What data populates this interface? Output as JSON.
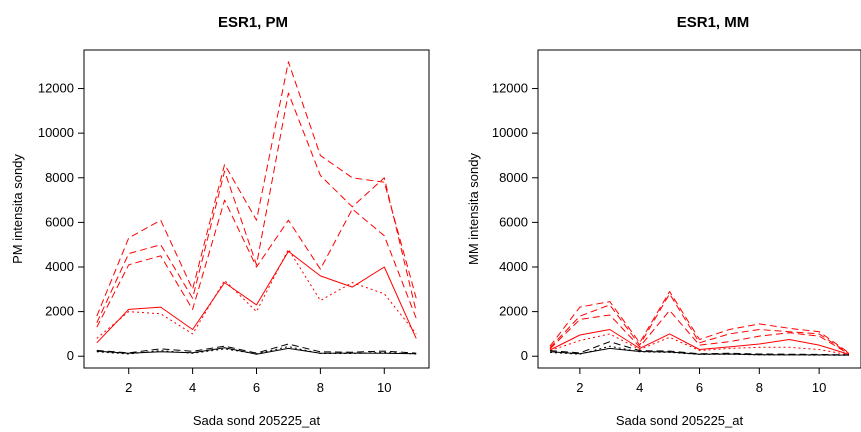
{
  "chart_data": [
    {
      "type": "line",
      "title": "ESR1, PM",
      "xlabel": "Sada sond 205225_at",
      "ylabel": "PM intensita sondy",
      "xlim": [
        1,
        11
      ],
      "ylim": [
        0,
        13200
      ],
      "xticks": [
        2,
        4,
        6,
        8,
        10
      ],
      "yticks": [
        0,
        2000,
        4000,
        6000,
        8000,
        10000,
        12000
      ],
      "x": [
        1,
        2,
        3,
        4,
        5,
        6,
        7,
        8,
        9,
        10,
        11
      ],
      "series": [
        {
          "color": "#ff0000",
          "dash": "dashed",
          "values": [
            1800,
            5300,
            6100,
            3000,
            8600,
            6100,
            13200,
            9000,
            8000,
            7800,
            2600
          ]
        },
        {
          "color": "#ff0000",
          "dash": "dashed",
          "values": [
            1500,
            4600,
            5000,
            2600,
            8300,
            4100,
            11800,
            8100,
            6700,
            8000,
            2000
          ]
        },
        {
          "color": "#ff0000",
          "dash": "dashed",
          "values": [
            1300,
            4100,
            4500,
            2100,
            7000,
            4000,
            6100,
            3900,
            6600,
            5400,
            1700
          ]
        },
        {
          "color": "#ff0000",
          "dash": "dotted",
          "values": [
            800,
            2000,
            1900,
            1000,
            3400,
            2000,
            4800,
            2500,
            3300,
            2800,
            1000
          ]
        },
        {
          "color": "#ff0000",
          "dash": "solid",
          "values": [
            600,
            2100,
            2200,
            1200,
            3300,
            2300,
            4700,
            3600,
            3100,
            4000,
            800
          ]
        },
        {
          "color": "#000000",
          "dash": "solid",
          "values": [
            230,
            130,
            200,
            160,
            380,
            90,
            350,
            130,
            140,
            130,
            110
          ]
        },
        {
          "color": "#000000",
          "dash": "dashed",
          "values": [
            260,
            150,
            330,
            220,
            450,
            140,
            550,
            200,
            180,
            230,
            140
          ]
        },
        {
          "color": "#000000",
          "dash": "dotted",
          "values": [
            200,
            100,
            250,
            130,
            330,
            110,
            430,
            120,
            120,
            170,
            100
          ]
        }
      ]
    },
    {
      "type": "line",
      "title": "ESR1, MM",
      "xlabel": "Sada sond 205225_at",
      "ylabel": "MM intensita sondy",
      "xlim": [
        1,
        11
      ],
      "ylim": [
        0,
        13200
      ],
      "xticks": [
        2,
        4,
        6,
        8,
        10
      ],
      "yticks": [
        0,
        2000,
        4000,
        6000,
        8000,
        10000,
        12000
      ],
      "x": [
        1,
        2,
        3,
        4,
        5,
        6,
        7,
        8,
        9,
        10,
        11
      ],
      "series": [
        {
          "color": "#ff0000",
          "dash": "dashed",
          "values": [
            450,
            2200,
            2450,
            600,
            2900,
            750,
            1200,
            1450,
            1250,
            1100,
            150
          ]
        },
        {
          "color": "#ff0000",
          "dash": "dashed",
          "values": [
            380,
            1800,
            2300,
            500,
            2800,
            600,
            1000,
            1200,
            1100,
            1000,
            120
          ]
        },
        {
          "color": "#ff0000",
          "dash": "dashed",
          "values": [
            330,
            1650,
            1850,
            420,
            2050,
            500,
            650,
            900,
            1050,
            900,
            100
          ]
        },
        {
          "color": "#ff0000",
          "dash": "solid",
          "values": [
            280,
            950,
            1200,
            350,
            1000,
            300,
            420,
            550,
            750,
            500,
            80
          ]
        },
        {
          "color": "#ff0000",
          "dash": "dotted",
          "values": [
            250,
            700,
            1000,
            300,
            850,
            250,
            350,
            400,
            400,
            300,
            60
          ]
        },
        {
          "color": "#000000",
          "dash": "dashed",
          "values": [
            250,
            150,
            650,
            250,
            230,
            110,
            130,
            100,
            90,
            80,
            60
          ]
        },
        {
          "color": "#000000",
          "dash": "solid",
          "values": [
            200,
            110,
            350,
            210,
            190,
            90,
            100,
            70,
            60,
            60,
            50
          ]
        },
        {
          "color": "#000000",
          "dash": "dotted",
          "values": [
            170,
            90,
            450,
            200,
            170,
            80,
            90,
            60,
            55,
            50,
            40
          ]
        }
      ]
    }
  ]
}
